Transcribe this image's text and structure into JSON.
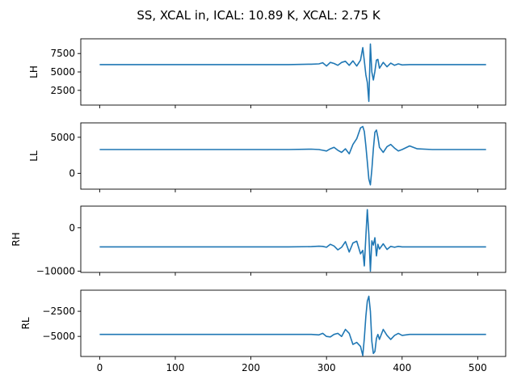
{
  "chart_data": {
    "type": "line",
    "title": "SS, XCAL in, ICAL: 10.89 K, XCAL: 2.75 K",
    "line_color": "#1f77b4",
    "shared_x": {
      "xlim": [
        -25,
        537
      ],
      "ticks": [
        0,
        100,
        200,
        300,
        400,
        500
      ],
      "tick_labels": [
        "0",
        "100",
        "200",
        "300",
        "400",
        "500"
      ]
    },
    "x": [
      0,
      50,
      100,
      150,
      200,
      250,
      280,
      290,
      295,
      300,
      305,
      310,
      315,
      320,
      325,
      330,
      335,
      340,
      345,
      348,
      350,
      352,
      354,
      356,
      358,
      360,
      362,
      364,
      366,
      368,
      370,
      375,
      380,
      385,
      390,
      395,
      400,
      410,
      420,
      440,
      460,
      480,
      511
    ],
    "panels": [
      {
        "ylabel": "LH",
        "ylim": [
          500,
          9500
        ],
        "yticks": [
          2500,
          5000,
          7500
        ],
        "ytick_labels": [
          "2500",
          "5000",
          "7500"
        ],
        "y": [
          6000,
          6000,
          6000,
          6000,
          6000,
          6000,
          6050,
          6100,
          6250,
          5800,
          6300,
          6150,
          5900,
          6300,
          6450,
          5900,
          6500,
          5800,
          6600,
          8300,
          6500,
          4600,
          3600,
          1000,
          8800,
          5000,
          3900,
          5100,
          6600,
          6700,
          5500,
          6300,
          5700,
          6200,
          5900,
          6100,
          5950,
          6000,
          6000,
          6000,
          6000,
          6000,
          6000
        ]
      },
      {
        "ylabel": "LL",
        "ylim": [
          -2200,
          7000
        ],
        "yticks": [
          0,
          5000
        ],
        "ytick_labels": [
          "0",
          "5000"
        ],
        "y": [
          3300,
          3300,
          3300,
          3300,
          3300,
          3300,
          3350,
          3300,
          3200,
          3100,
          3400,
          3600,
          3200,
          2900,
          3400,
          2700,
          4000,
          4800,
          6300,
          6500,
          5800,
          3800,
          1600,
          -800,
          -1600,
          500,
          3400,
          5700,
          6000,
          5000,
          3600,
          2900,
          3700,
          4000,
          3500,
          3100,
          3300,
          3800,
          3400,
          3300,
          3300,
          3300,
          3300
        ]
      },
      {
        "ylabel": "RH",
        "ylim": [
          -10300,
          5000
        ],
        "yticks": [
          -10000,
          0
        ],
        "ytick_labels": [
          "−10000",
          "0"
        ],
        "y": [
          -4400,
          -4400,
          -4400,
          -4400,
          -4400,
          -4400,
          -4350,
          -4250,
          -4300,
          -4500,
          -3800,
          -4200,
          -5100,
          -4500,
          -3200,
          -5600,
          -3500,
          -3100,
          -6000,
          -5200,
          -8800,
          -2000,
          4200,
          -1500,
          -10000,
          -3000,
          -4000,
          -2300,
          -6500,
          -3800,
          -4900,
          -3700,
          -5000,
          -4300,
          -4500,
          -4300,
          -4400,
          -4400,
          -4400,
          -4400,
          -4400,
          -4400,
          -4400
        ]
      },
      {
        "ylabel": "RL",
        "ylim": [
          -7000,
          -400
        ],
        "yticks": [
          -5000,
          -2500
        ],
        "ytick_labels": [
          "−5000",
          "−2500"
        ],
        "y": [
          -4800,
          -4800,
          -4800,
          -4800,
          -4800,
          -4800,
          -4800,
          -4850,
          -4700,
          -5000,
          -5050,
          -4800,
          -4700,
          -5000,
          -4300,
          -4700,
          -5800,
          -5600,
          -6000,
          -6900,
          -5200,
          -3000,
          -1500,
          -1000,
          -2500,
          -5500,
          -6700,
          -6500,
          -5200,
          -4800,
          -5300,
          -4300,
          -4900,
          -5300,
          -4900,
          -4700,
          -4900,
          -4800,
          -4800,
          -4800,
          -4800,
          -4800,
          -4800
        ]
      }
    ]
  }
}
